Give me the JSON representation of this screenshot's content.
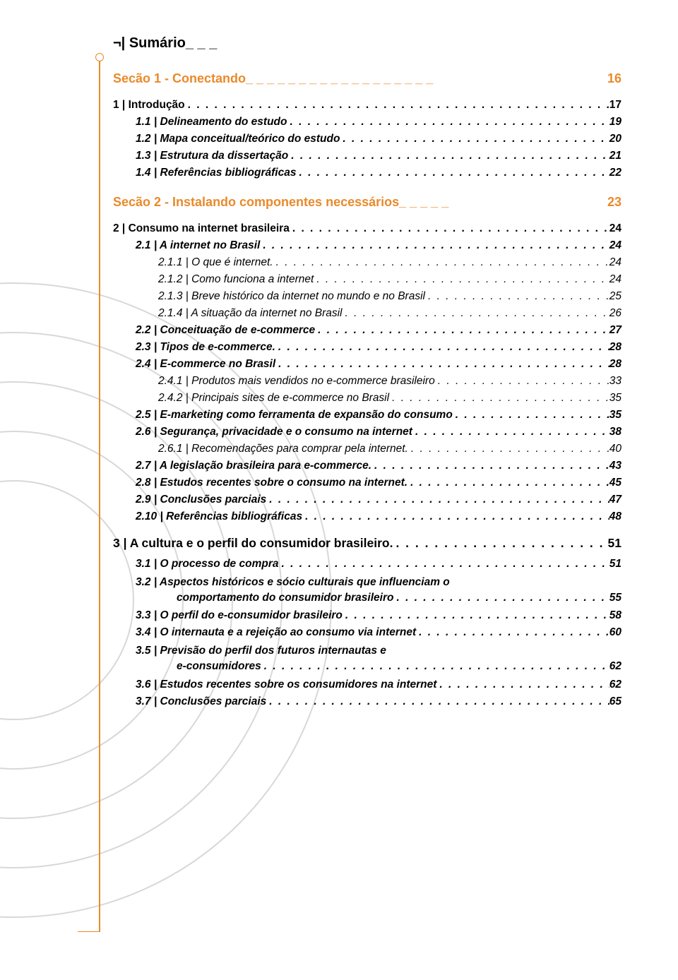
{
  "toc_header": "¬| Sumário_ _ _",
  "section1": {
    "title_left": "Secão 1 - Conectando_ _ _  _ _ _ _ _ _ _ _ _ _ _ _ _ _ _",
    "title_page": "16",
    "items": [
      {
        "level": 0,
        "style": "bold",
        "label": "1 | Introdução",
        "page": "17"
      },
      {
        "level": 1,
        "style": "bold italic",
        "label": "1.1 | Delineamento do estudo",
        "page": "19"
      },
      {
        "level": 1,
        "style": "bold italic",
        "label": "1.2 | Mapa conceitual/teórico do estudo",
        "page": "20"
      },
      {
        "level": 1,
        "style": "bold italic",
        "label": "1.3 | Estrutura da dissertação",
        "page": "21"
      },
      {
        "level": 1,
        "style": "bold italic",
        "label": "1.4 | Referências bibliográficas",
        "page": "22"
      }
    ]
  },
  "section2": {
    "title_left": "Secão 2 - Instalando componentes necessários_ _ _ _ _",
    "title_page": "23",
    "items": [
      {
        "level": 0,
        "style": "bold",
        "label": "2 | Consumo na internet brasileira",
        "page": "24"
      },
      {
        "level": 1,
        "style": "bold italic",
        "label": "2.1 | A internet no Brasil",
        "page": "24"
      },
      {
        "level": 2,
        "style": "italic",
        "label": "2.1.1 | O que é internet.",
        "page": "24"
      },
      {
        "level": 2,
        "style": "italic",
        "label": "2.1.2 | Como funciona a internet",
        "page": "24"
      },
      {
        "level": 2,
        "style": "italic",
        "label": "2.1.3 | Breve histórico da internet no mundo e no Brasil",
        "page": "25"
      },
      {
        "level": 2,
        "style": "italic",
        "label": "2.1.4 | A situação da internet no Brasil",
        "page": "26"
      },
      {
        "level": 1,
        "style": "bold italic",
        "label": "2.2 | Conceituação de e-commerce",
        "page": "27"
      },
      {
        "level": 1,
        "style": "bold italic",
        "label": "2.3 | Tipos de e-commerce.",
        "page": "28"
      },
      {
        "level": 1,
        "style": "bold italic",
        "label": "2.4 | E-commerce no Brasil",
        "page": "28"
      },
      {
        "level": 2,
        "style": "italic",
        "label": "2.4.1 | Produtos mais vendidos no e-commerce brasileiro",
        "page": "33"
      },
      {
        "level": 2,
        "style": "italic",
        "label": "2.4.2 | Principais sites de e-commerce no Brasil",
        "page": "35"
      },
      {
        "level": 1,
        "style": "bold italic",
        "label": "2.5 | E-marketing como ferramenta de expansão do consumo",
        "page": "35"
      },
      {
        "level": 1,
        "style": "bold italic",
        "label": "2.6 | Segurança, privacidade e o consumo na internet",
        "page": "38"
      },
      {
        "level": 2,
        "style": "italic",
        "label": "2.6.1 | Recomendações para comprar pela internet.",
        "page": "40"
      },
      {
        "level": 1,
        "style": "bold italic",
        "label": "2.7 | A legislação brasileira para e-commerce.",
        "page": "43"
      },
      {
        "level": 1,
        "style": "bold italic",
        "label": "2.8 | Estudos recentes sobre o consumo na internet.",
        "page": "45"
      },
      {
        "level": 1,
        "style": "bold italic",
        "label": "2.9 | Conclusões parciais",
        "page": "47"
      },
      {
        "level": 1,
        "style": "bold italic",
        "label": "2.10 | Referências bibliográficas",
        "page": "48"
      }
    ]
  },
  "chapter3": {
    "label": "3 | A cultura e o perfil do consumidor brasileiro.",
    "page": "51",
    "items": [
      {
        "level": 1,
        "style": "bold italic",
        "label": "3.1 | O processo de compra",
        "page": "51"
      },
      {
        "level": 1,
        "style": "bold italic",
        "multiline": true,
        "line1": "3.2 | Aspectos históricos e sócio culturais que influenciam o",
        "line2": "comportamento do consumidor brasileiro",
        "page": "55"
      },
      {
        "level": 1,
        "style": "bold italic",
        "label": "3.3 | O perfil do e-consumidor brasileiro",
        "page": "58"
      },
      {
        "level": 1,
        "style": "bold italic",
        "label": "3.4 | O internauta e a rejeição ao consumo via internet",
        "page": "60"
      },
      {
        "level": 1,
        "style": "bold italic",
        "multiline": true,
        "line1": "3.5 | Previsão do perfil dos futuros internautas e",
        "line2": "e-consumidores",
        "page": "62"
      },
      {
        "level": 1,
        "style": "bold italic",
        "label": "3.6 | Estudos recentes sobre os consumidores na internet",
        "page": "62"
      },
      {
        "level": 1,
        "style": "bold italic",
        "label": "3.7 | Conclusões parciais",
        "page": "65"
      }
    ]
  },
  "colors": {
    "accent": "#e98a2b",
    "decorative_ring": "#d8d8d8",
    "text": "#000000",
    "background": "#ffffff"
  },
  "typography": {
    "body_fontsize": 15.5,
    "chapter_fontsize": 17.5,
    "section_header_fontsize": 18,
    "title_fontsize": 20,
    "font_family": "Verdana"
  }
}
